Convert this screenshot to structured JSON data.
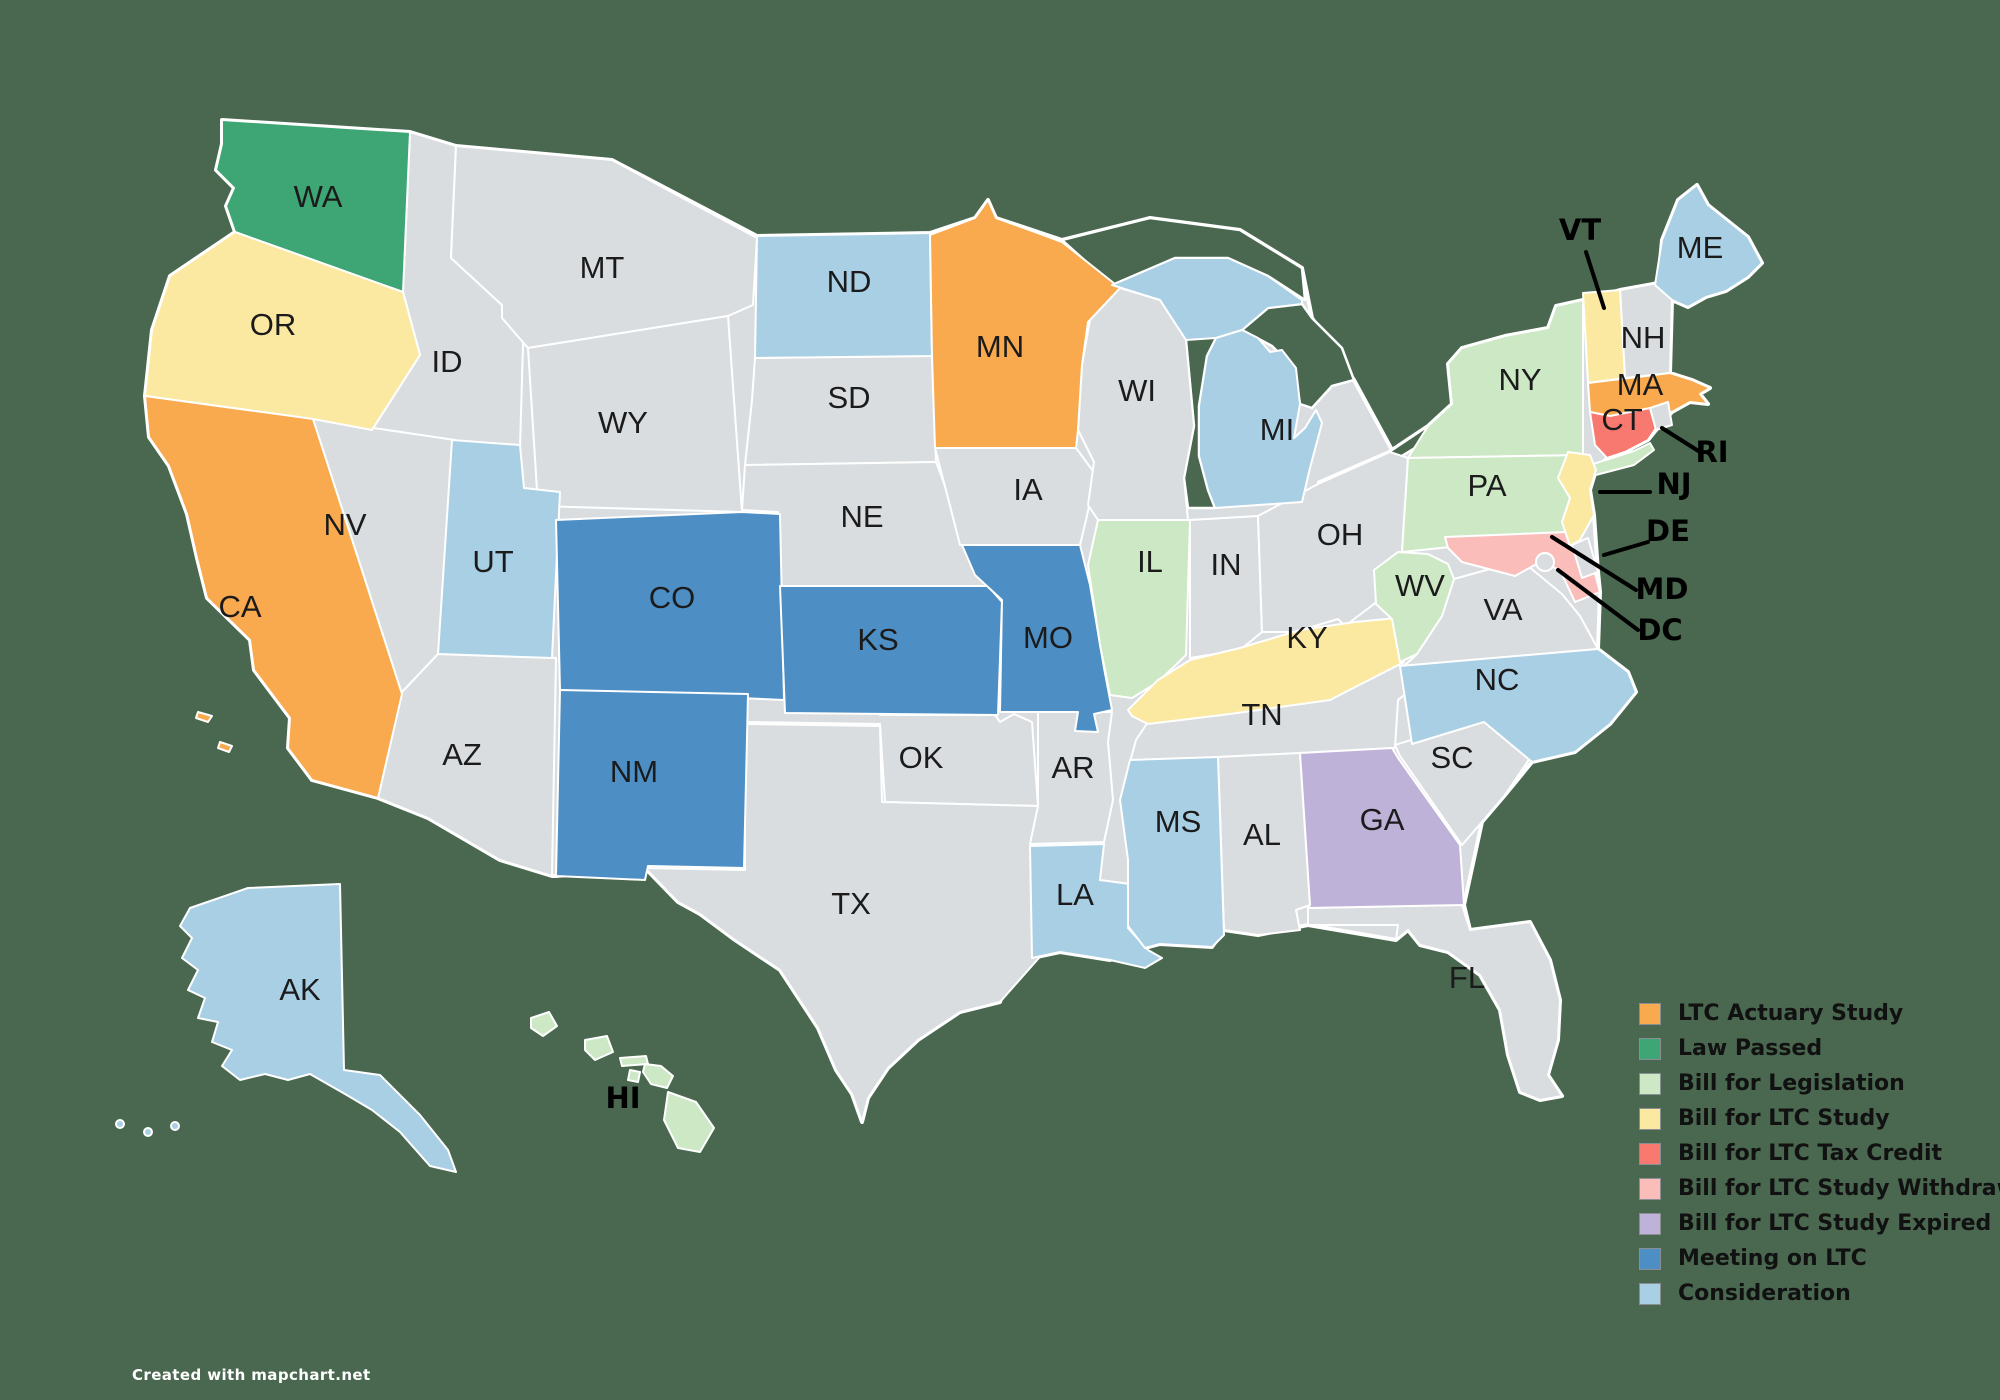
{
  "background_color": "#4A6850",
  "credit": "Created with mapchart.net",
  "status_colors": {
    "ltc_actuary_study": "#F9A94E",
    "law_passed": "#3EA574",
    "bill_for_legislation": "#CCE8C4",
    "bill_for_ltc_study": "#FBE9A2",
    "bill_for_ltc_tax_credit": "#F8796F",
    "bill_for_ltc_study_withdrawn": "#FBBDB9",
    "bill_for_ltc_study_expired": "#BFB2D8",
    "meeting_on_ltc": "#4D8EC4",
    "consideration": "#A9CFE5",
    "none": "#D9DDE0"
  },
  "legend": {
    "items": [
      {
        "label": "LTC Actuary Study",
        "status": "ltc_actuary_study",
        "color": "#F9A94E"
      },
      {
        "label": "Law Passed",
        "status": "law_passed",
        "color": "#3EA574"
      },
      {
        "label": "Bill for Legislation",
        "status": "bill_for_legislation",
        "color": "#CCE8C4"
      },
      {
        "label": "Bill for LTC Study",
        "status": "bill_for_ltc_study",
        "color": "#FBE9A2"
      },
      {
        "label": "Bill for LTC Tax Credit",
        "status": "bill_for_ltc_tax_credit",
        "color": "#F8796F"
      },
      {
        "label": "Bill for LTC Study Withdrawn",
        "status": "bill_for_ltc_study_withdrawn",
        "color": "#FBBDB9"
      },
      {
        "label": "Bill for LTC Study Expired",
        "status": "bill_for_ltc_study_expired",
        "color": "#BFB2D8"
      },
      {
        "label": "Meeting on LTC",
        "status": "meeting_on_ltc",
        "color": "#4D8EC4"
      },
      {
        "label": "Consideration",
        "status": "consideration",
        "color": "#A9CFE5"
      }
    ]
  },
  "states": [
    {
      "abbr": "WA",
      "status": "law_passed"
    },
    {
      "abbr": "OR",
      "status": "bill_for_ltc_study"
    },
    {
      "abbr": "CA",
      "status": "ltc_actuary_study"
    },
    {
      "abbr": "NV",
      "status": "none"
    },
    {
      "abbr": "ID",
      "status": "none"
    },
    {
      "abbr": "MT",
      "status": "none"
    },
    {
      "abbr": "WY",
      "status": "none"
    },
    {
      "abbr": "UT",
      "status": "consideration"
    },
    {
      "abbr": "AZ",
      "status": "none"
    },
    {
      "abbr": "CO",
      "status": "meeting_on_ltc"
    },
    {
      "abbr": "NM",
      "status": "meeting_on_ltc"
    },
    {
      "abbr": "ND",
      "status": "consideration"
    },
    {
      "abbr": "SD",
      "status": "none"
    },
    {
      "abbr": "NE",
      "status": "none"
    },
    {
      "abbr": "KS",
      "status": "meeting_on_ltc"
    },
    {
      "abbr": "OK",
      "status": "none"
    },
    {
      "abbr": "TX",
      "status": "none"
    },
    {
      "abbr": "MN",
      "status": "ltc_actuary_study"
    },
    {
      "abbr": "IA",
      "status": "none"
    },
    {
      "abbr": "MO",
      "status": "meeting_on_ltc"
    },
    {
      "abbr": "AR",
      "status": "none"
    },
    {
      "abbr": "LA",
      "status": "consideration"
    },
    {
      "abbr": "WI",
      "status": "none"
    },
    {
      "abbr": "IL",
      "status": "bill_for_legislation"
    },
    {
      "abbr": "MS",
      "status": "consideration"
    },
    {
      "abbr": "MI",
      "status": "consideration"
    },
    {
      "abbr": "IN",
      "status": "none"
    },
    {
      "abbr": "OH",
      "status": "none"
    },
    {
      "abbr": "KY",
      "status": "bill_for_ltc_study"
    },
    {
      "abbr": "TN",
      "status": "none"
    },
    {
      "abbr": "AL",
      "status": "none"
    },
    {
      "abbr": "GA",
      "status": "bill_for_ltc_study_expired"
    },
    {
      "abbr": "FL",
      "status": "none"
    },
    {
      "abbr": "SC",
      "status": "none"
    },
    {
      "abbr": "NC",
      "status": "consideration"
    },
    {
      "abbr": "VA",
      "status": "none"
    },
    {
      "abbr": "WV",
      "status": "bill_for_legislation"
    },
    {
      "abbr": "PA",
      "status": "bill_for_legislation"
    },
    {
      "abbr": "NY",
      "status": "bill_for_legislation"
    },
    {
      "abbr": "NJ",
      "status": "bill_for_ltc_study"
    },
    {
      "abbr": "DE",
      "status": "none"
    },
    {
      "abbr": "MD",
      "status": "bill_for_ltc_study_withdrawn"
    },
    {
      "abbr": "DC",
      "status": "none"
    },
    {
      "abbr": "VT",
      "status": "bill_for_ltc_study"
    },
    {
      "abbr": "NH",
      "status": "none"
    },
    {
      "abbr": "MA",
      "status": "ltc_actuary_study"
    },
    {
      "abbr": "CT",
      "status": "bill_for_ltc_tax_credit"
    },
    {
      "abbr": "RI",
      "status": "none"
    },
    {
      "abbr": "ME",
      "status": "consideration"
    },
    {
      "abbr": "AK",
      "status": "consideration"
    },
    {
      "abbr": "HI",
      "status": "bill_for_legislation"
    }
  ]
}
